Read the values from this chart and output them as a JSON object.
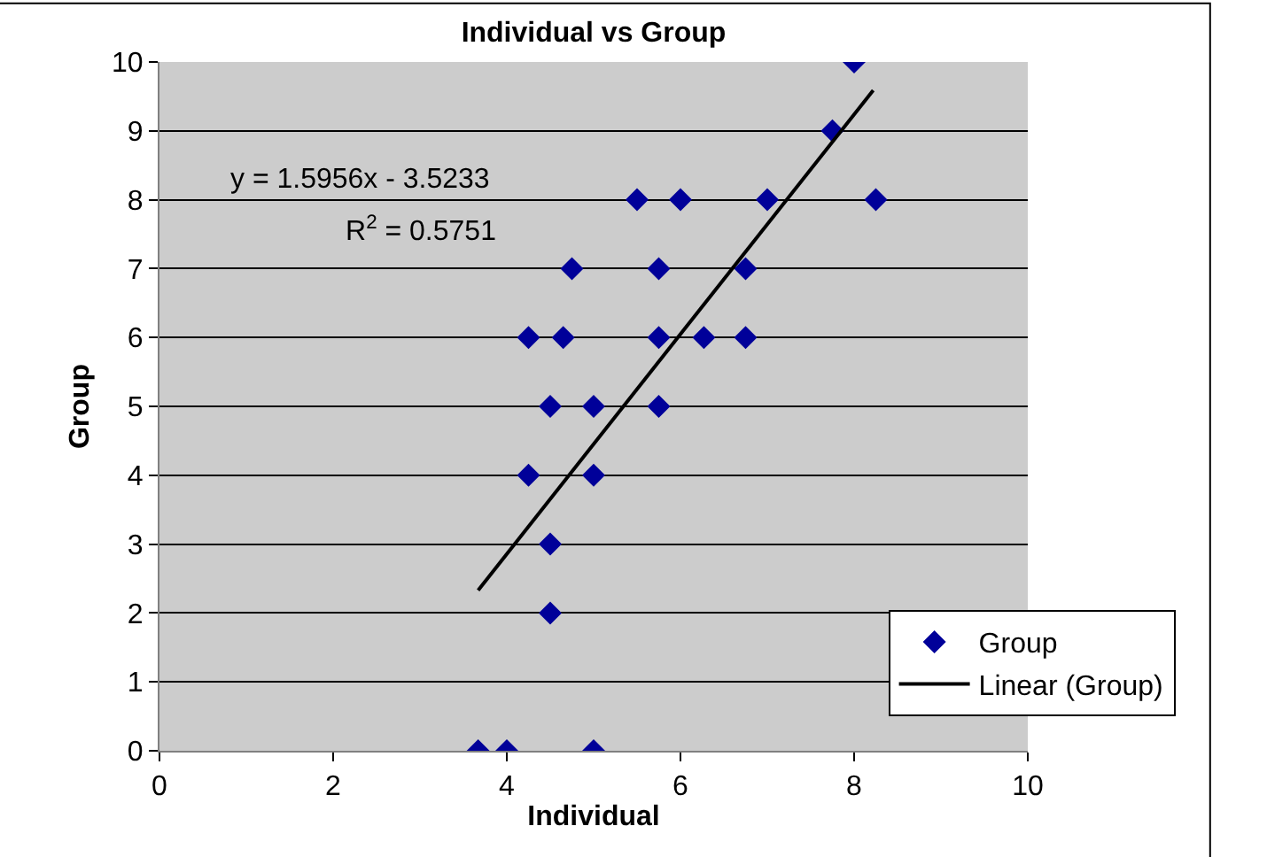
{
  "chart_data": {
    "type": "scatter",
    "title": "Individual vs Group",
    "xlabel": "Individual",
    "ylabel": "Group",
    "xlim": [
      0,
      10
    ],
    "xticks": [
      0,
      2,
      4,
      6,
      8,
      10
    ],
    "ylim": [
      0,
      10
    ],
    "yticks": [
      0,
      1,
      2,
      3,
      4,
      5,
      6,
      7,
      8,
      9,
      10
    ],
    "grid": "y",
    "legend": "bottom right",
    "marker": "diamond",
    "annotations": [
      "y = 1.5956x - 3.5233",
      "R$^{2}$ = 0.5751"
    ],
    "series": [
      {
        "name": "Group",
        "color": "#000099",
        "x": [
          3.67,
          4.0,
          5.0,
          4.5,
          4.5,
          4.25,
          5.0,
          4.5,
          5.0,
          5.75,
          4.25,
          4.65,
          5.75,
          6.27,
          6.75,
          4.75,
          5.75,
          6.75,
          5.5,
          6.0,
          7.0,
          8.25,
          7.75,
          8.0
        ],
        "values": [
          0,
          0,
          0,
          2,
          3,
          4,
          4,
          5,
          5,
          5,
          6,
          6,
          6,
          6,
          6,
          7,
          7,
          7,
          8,
          8,
          8,
          8,
          9,
          10
        ]
      },
      {
        "name": "Linear (Group)",
        "type": "line",
        "color": "#000000",
        "line_style": "solid",
        "marker": "none",
        "x": [
          3.67,
          8.22
        ],
        "values": [
          2.33,
          9.59
        ]
      }
    ]
  }
}
